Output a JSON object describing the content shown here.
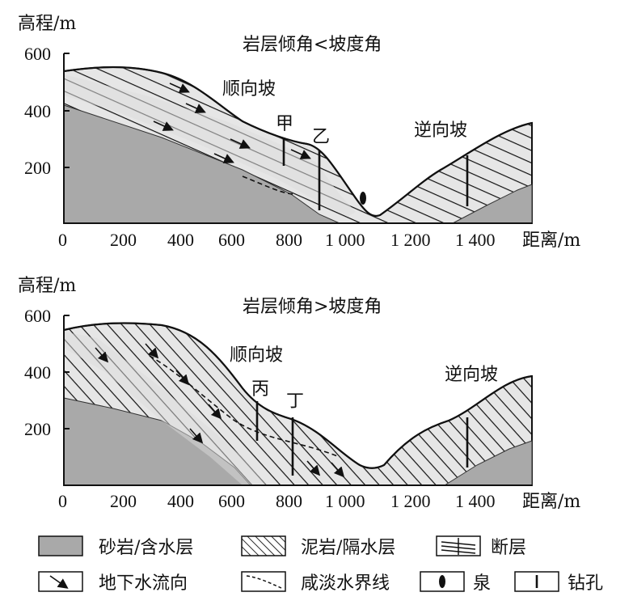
{
  "top": {
    "title": "岩层倾角<坡度角",
    "y_axis_label": "高程/m",
    "x_axis_label": "距离/m",
    "y_ticks": [
      "600",
      "400",
      "200"
    ],
    "x_ticks": [
      "0",
      "200",
      "400",
      "600",
      "800",
      "1 000",
      "1 200",
      "1 400"
    ],
    "slope_left_label": "顺向坡",
    "slope_right_label": "逆向坡",
    "borehole_a": "甲",
    "borehole_b": "乙"
  },
  "bottom": {
    "title": "岩层倾角>坡度角",
    "y_axis_label": "高程/m",
    "x_axis_label": "距离/m",
    "y_ticks": [
      "600",
      "400",
      "200"
    ],
    "x_ticks": [
      "0",
      "200",
      "400",
      "600",
      "800",
      "1 000",
      "1 200",
      "1 400"
    ],
    "slope_left_label": "顺向坡",
    "slope_right_label": "逆向坡",
    "borehole_a": "丙",
    "borehole_b": "丁"
  },
  "legend": {
    "sandstone": "砂岩/含水层",
    "mudstone": "泥岩/隔水层",
    "fault": "断层",
    "groundwater_flow": "地下水流向",
    "saline_boundary": "咸淡水界线",
    "spring": "泉",
    "borehole": "钻孔"
  },
  "colors": {
    "sandstone": "#a9a9a9",
    "sandstone_light": "#d9d9d9",
    "line": "#111111"
  }
}
